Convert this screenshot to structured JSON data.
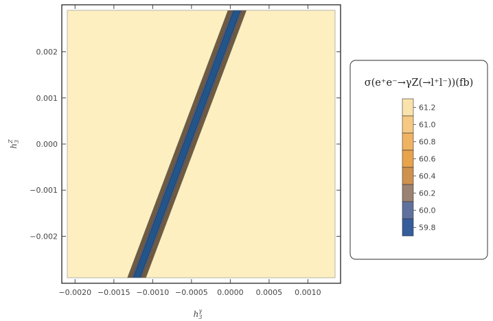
{
  "chart_data": {
    "type": "contour",
    "title": "",
    "xlabel": {
      "base": "h",
      "sub": "3",
      "sup": "γ"
    },
    "ylabel": {
      "base": "h",
      "sub": "3",
      "sup": "Z"
    },
    "xlim": [
      -0.0021,
      0.00135
    ],
    "ylim": [
      -0.0029,
      0.0029
    ],
    "x_ticks": [
      {
        "value": -0.002,
        "label": "−0.0020"
      },
      {
        "value": -0.0015,
        "label": "−0.0015"
      },
      {
        "value": -0.001,
        "label": "−0.0010"
      },
      {
        "value": -0.0005,
        "label": "−0.0005"
      },
      {
        "value": 0.0,
        "label": "0.0000"
      },
      {
        "value": 0.0005,
        "label": "0.0005"
      },
      {
        "value": 0.001,
        "label": "0.0010"
      }
    ],
    "y_ticks": [
      {
        "value": -0.002,
        "label": "−0.002"
      },
      {
        "value": -0.001,
        "label": "−0.001"
      },
      {
        "value": 0.0,
        "label": "0.000"
      },
      {
        "value": 0.001,
        "label": "0.001"
      },
      {
        "value": 0.002,
        "label": "0.002"
      }
    ],
    "contour_model": {
      "minimum_value": 59.66,
      "minimum_line": {
        "x_at_y0": -0.000559,
        "slope_dx_dy": 0.2234
      },
      "curvature": 120000000,
      "levels": [
        59.7,
        59.8,
        59.9,
        60.0,
        60.1,
        60.2,
        60.3,
        60.4,
        60.5,
        60.6,
        60.7,
        60.8,
        60.9,
        61.0,
        61.1,
        61.2,
        61.3
      ]
    },
    "legend": {
      "title": "σ(e⁺e⁻→γZ(→l⁺l⁻))(fb)",
      "placement": "right",
      "ticks": [
        "61.2",
        "61.0",
        "60.8",
        "60.6",
        "60.4",
        "60.2",
        "60.0",
        "59.8"
      ],
      "color_stops": [
        {
          "value": 59.7,
          "color": "#22558a"
        },
        {
          "value": 59.9,
          "color": "#4766ae"
        },
        {
          "value": 60.1,
          "color": "#7a7c8d"
        },
        {
          "value": 60.3,
          "color": "#b98a5a"
        },
        {
          "value": 60.5,
          "color": "#e59a42"
        },
        {
          "value": 60.9,
          "color": "#f2bc6e"
        },
        {
          "value": 61.3,
          "color": "#fdefc0"
        }
      ]
    }
  }
}
